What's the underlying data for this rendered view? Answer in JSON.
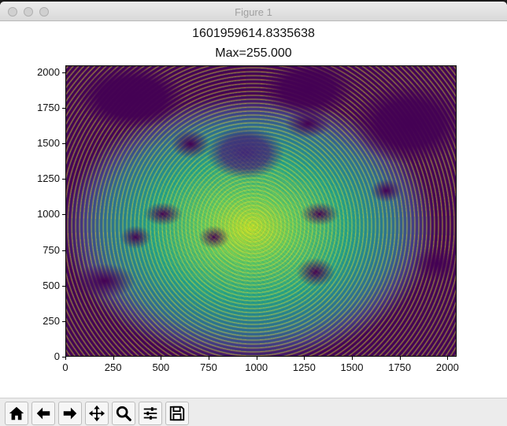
{
  "window": {
    "title": "Figure 1"
  },
  "figure": {
    "title_line1": "1601959614.8335638",
    "title_line2": "Max=255.000"
  },
  "chart_data": {
    "type": "heatmap",
    "colormap": "viridis",
    "title": "1601959614.8335638 Max=255.000",
    "xlim": [
      0,
      2048
    ],
    "ylim": [
      0,
      2048
    ],
    "xticks": [
      "0",
      "250",
      "500",
      "750",
      "1000",
      "1250",
      "1500",
      "1750",
      "2000"
    ],
    "yticks": [
      "0",
      "250",
      "500",
      "750",
      "1000",
      "1250",
      "1500",
      "1750",
      "2000"
    ],
    "value_max": 255.0
  },
  "toolbar": {
    "buttons": [
      {
        "name": "home-icon"
      },
      {
        "name": "back-arrow-icon"
      },
      {
        "name": "forward-arrow-icon"
      },
      {
        "name": "pan-icon"
      },
      {
        "name": "zoom-icon"
      },
      {
        "name": "configure-subplots-icon"
      },
      {
        "name": "save-icon"
      }
    ]
  }
}
